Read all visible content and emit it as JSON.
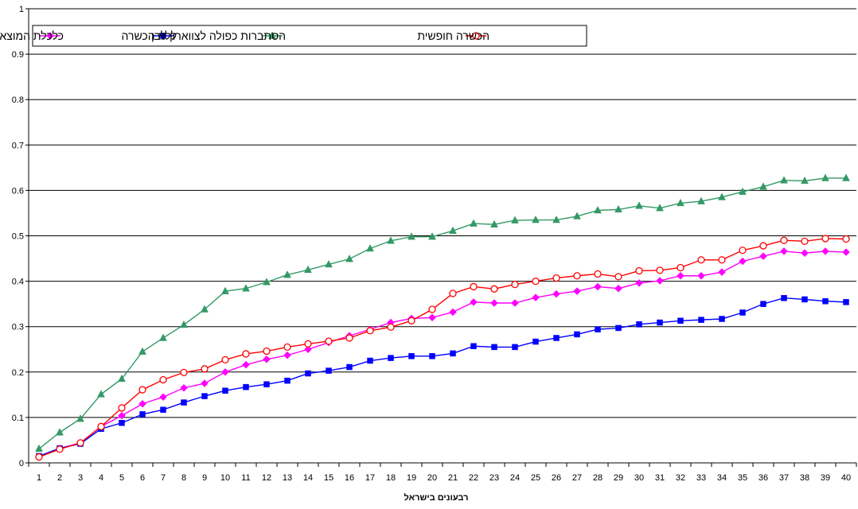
{
  "chart_data": {
    "type": "line",
    "title": "",
    "xlabel": "רבעונים בישראל",
    "ylabel": "",
    "x": [
      1,
      2,
      3,
      4,
      5,
      6,
      7,
      8,
      9,
      10,
      11,
      12,
      13,
      14,
      15,
      16,
      17,
      18,
      19,
      20,
      21,
      22,
      23,
      24,
      25,
      26,
      27,
      28,
      29,
      30,
      31,
      32,
      33,
      34,
      35,
      36,
      37,
      38,
      39,
      40
    ],
    "xlim": [
      1,
      40
    ],
    "ylim": [
      0,
      1
    ],
    "yticks": [
      "0",
      "0.1",
      "0.2",
      "0.3",
      "0.4",
      "0.5",
      "0.6",
      "0.7",
      "0.8",
      "0.9",
      "1"
    ],
    "grid": "horizontal",
    "legend_position": "top-left",
    "series": [
      {
        "name": "כלכלת המוצא",
        "color": "#ff00ff",
        "marker": "diamond",
        "values": [
          0.014,
          0.032,
          0.044,
          0.08,
          0.104,
          0.13,
          0.145,
          0.165,
          0.175,
          0.2,
          0.216,
          0.228,
          0.237,
          0.25,
          0.265,
          0.28,
          0.294,
          0.309,
          0.318,
          0.32,
          0.332,
          0.354,
          0.352,
          0.352,
          0.364,
          0.372,
          0.378,
          0.388,
          0.384,
          0.396,
          0.401,
          0.412,
          0.412,
          0.42,
          0.444,
          0.455,
          0.466,
          0.462,
          0.466,
          0.464
        ]
      },
      {
        "name": "ללא הכשרה",
        "color": "#0000ff",
        "marker": "square",
        "values": [
          0.015,
          0.032,
          0.042,
          0.075,
          0.088,
          0.107,
          0.117,
          0.133,
          0.147,
          0.159,
          0.167,
          0.173,
          0.181,
          0.197,
          0.203,
          0.211,
          0.225,
          0.231,
          0.235,
          0.235,
          0.241,
          0.257,
          0.255,
          0.255,
          0.267,
          0.275,
          0.283,
          0.294,
          0.297,
          0.305,
          0.309,
          0.313,
          0.315,
          0.317,
          0.331,
          0.35,
          0.363,
          0.36,
          0.356,
          0.354
        ]
      },
      {
        "name": "הסתברות כפולה לצווארון לבן",
        "color": "#339966",
        "marker": "triangle",
        "values": [
          0.031,
          0.067,
          0.097,
          0.151,
          0.185,
          0.245,
          0.275,
          0.304,
          0.338,
          0.378,
          0.384,
          0.398,
          0.414,
          0.425,
          0.437,
          0.449,
          0.472,
          0.489,
          0.498,
          0.498,
          0.511,
          0.527,
          0.525,
          0.534,
          0.535,
          0.535,
          0.543,
          0.556,
          0.558,
          0.566,
          0.561,
          0.572,
          0.576,
          0.585,
          0.597,
          0.608,
          0.622,
          0.621,
          0.627,
          0.627
        ]
      },
      {
        "name": "הכשרה חופשית",
        "color": "#ff0000",
        "marker": "open-circle",
        "values": [
          0.013,
          0.03,
          0.044,
          0.08,
          0.121,
          0.161,
          0.183,
          0.199,
          0.207,
          0.227,
          0.24,
          0.246,
          0.255,
          0.262,
          0.268,
          0.275,
          0.291,
          0.299,
          0.313,
          0.338,
          0.373,
          0.388,
          0.383,
          0.393,
          0.4,
          0.407,
          0.412,
          0.416,
          0.41,
          0.423,
          0.424,
          0.43,
          0.447,
          0.447,
          0.468,
          0.478,
          0.49,
          0.488,
          0.494,
          0.493
        ]
      }
    ]
  }
}
